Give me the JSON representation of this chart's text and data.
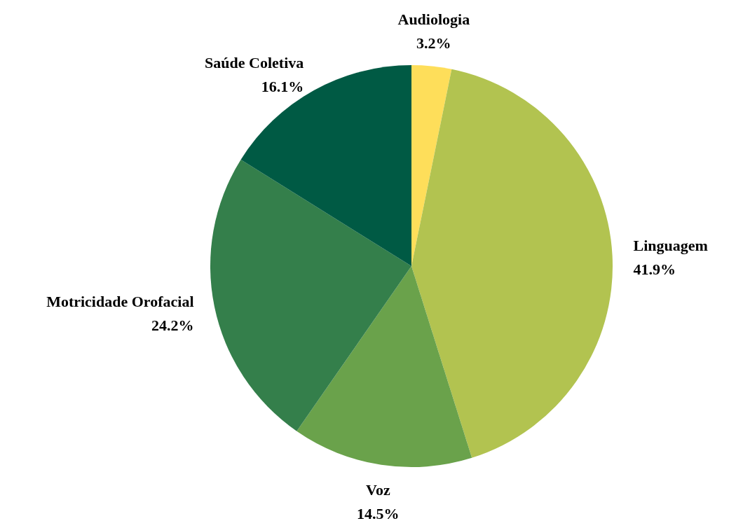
{
  "chart_data": {
    "type": "pie",
    "categories": [
      "Audiologia",
      "Linguagem",
      "Voz",
      "Motricidade Orofacial",
      "Saúde Coletiva"
    ],
    "values": [
      3.2,
      41.9,
      14.5,
      24.2,
      16.1
    ],
    "value_labels": [
      "3.2%",
      "41.9%",
      "14.5%",
      "24.2%",
      "16.1%"
    ],
    "colors": [
      "#fede5a",
      "#b2c350",
      "#6aa24b",
      "#347f4b",
      "#005a44"
    ]
  }
}
